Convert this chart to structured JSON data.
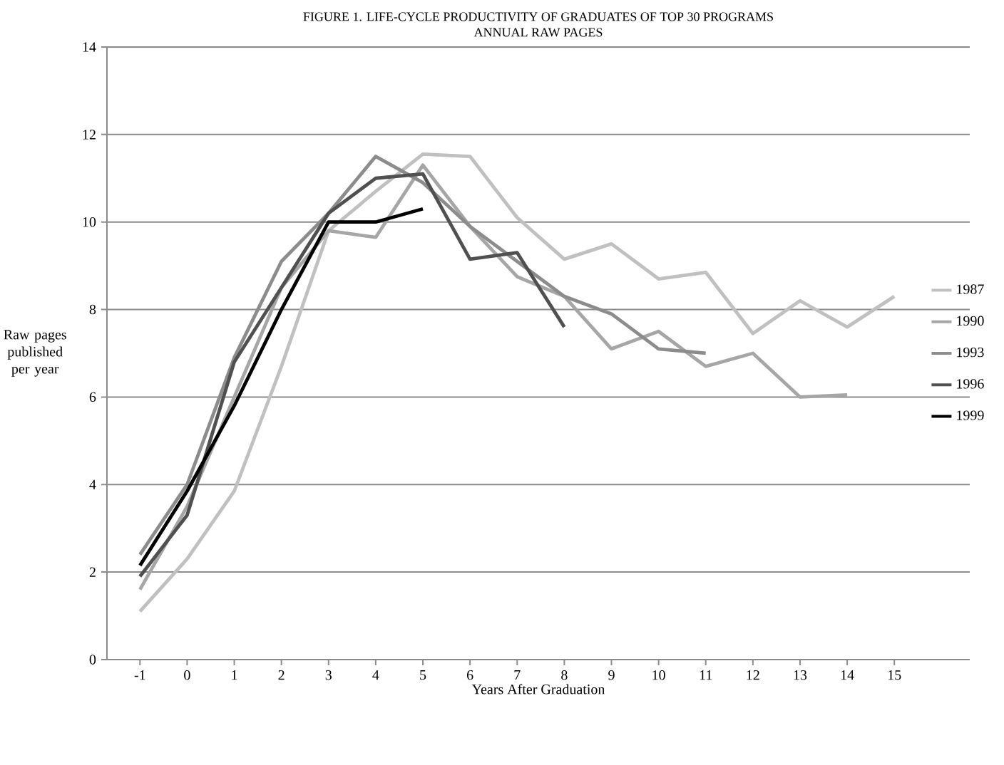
{
  "chart_data": {
    "type": "line",
    "title": "FIGURE 1. LIFE-CYCLE PRODUCTIVITY OF GRADUATES OF TOP 30 PROGRAMS",
    "subtitle": "ANNUAL RAW PAGES",
    "xlabel": "Years After Graduation",
    "ylabel": "Raw pages published per year",
    "xlim": [
      -1.7,
      16.6
    ],
    "xticks": [
      -1,
      0,
      1,
      2,
      3,
      4,
      5,
      6,
      7,
      8,
      9,
      10,
      11,
      12,
      13,
      14,
      15
    ],
    "ylim": [
      0,
      14
    ],
    "yticks": [
      0,
      2,
      4,
      6,
      8,
      10,
      12,
      14
    ],
    "grid": "y",
    "legend": "right",
    "marker": "none",
    "line_style": "solid",
    "series": [
      {
        "name": "1987",
        "color": "#c0c0c0",
        "x": [
          -1,
          0,
          1,
          2,
          3,
          4,
          5,
          6,
          7,
          8,
          9,
          10,
          11,
          12,
          13,
          14,
          15
        ],
        "values": [
          1.1,
          2.3,
          3.85,
          6.7,
          9.8,
          10.7,
          11.55,
          11.5,
          10.1,
          9.15,
          9.5,
          8.7,
          8.85,
          7.45,
          8.2,
          7.6,
          8.3
        ]
      },
      {
        "name": "1990",
        "color": "#a6a6a6",
        "x": [
          -1,
          0,
          1,
          2,
          3,
          4,
          5,
          6,
          7,
          8,
          9,
          10,
          11,
          12,
          13,
          14
        ],
        "values": [
          1.6,
          3.5,
          6.0,
          8.5,
          9.8,
          9.65,
          11.3,
          9.9,
          8.75,
          8.3,
          7.1,
          7.5,
          6.7,
          7.0,
          6.0,
          6.05
        ]
      },
      {
        "name": "1993",
        "color": "#8c8c8c",
        "x": [
          -1,
          0,
          1,
          2,
          3,
          4,
          5,
          6,
          7,
          8,
          9,
          10,
          11
        ],
        "values": [
          2.4,
          4.0,
          6.9,
          9.1,
          10.2,
          11.5,
          10.9,
          9.9,
          9.1,
          8.3,
          7.9,
          7.1,
          7.0
        ]
      },
      {
        "name": "1996",
        "color": "#505050",
        "x": [
          -1,
          0,
          1,
          2,
          3,
          4,
          5,
          6,
          7,
          8
        ],
        "values": [
          1.9,
          3.3,
          6.8,
          8.5,
          10.2,
          11.0,
          11.1,
          9.15,
          9.3,
          7.6
        ]
      },
      {
        "name": "1999",
        "color": "#000000",
        "x": [
          -1,
          0,
          1,
          2,
          3,
          4,
          5
        ],
        "values": [
          2.15,
          3.85,
          5.8,
          8.0,
          10.0,
          10.0,
          10.3
        ]
      }
    ]
  }
}
